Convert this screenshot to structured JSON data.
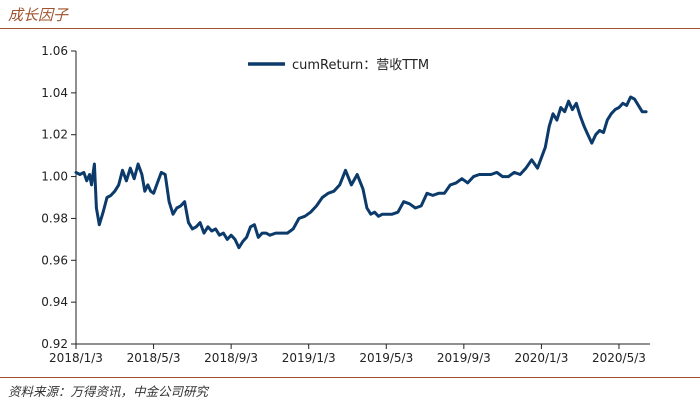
{
  "header": {
    "title": "成长因子"
  },
  "footer": {
    "source": "资料来源：万得资讯，中金公司研究"
  },
  "colors": {
    "series": "#0b3a6b",
    "rule": "#a0522d",
    "axis": "#222222"
  },
  "chart_data": {
    "type": "line",
    "title": "",
    "xlabel": "",
    "ylabel": "",
    "ylim": [
      0.92,
      1.06
    ],
    "yticks": [
      0.92,
      0.94,
      0.96,
      0.98,
      1.0,
      1.02,
      1.04,
      1.06
    ],
    "ytick_labels": [
      "0.92",
      "0.94",
      "0.96",
      "0.98",
      "1.00",
      "1.02",
      "1.04",
      "1.06"
    ],
    "xlim": [
      0,
      29.6
    ],
    "xticks": [
      0,
      4,
      8,
      12,
      16,
      20,
      24,
      28
    ],
    "xtick_labels": [
      "2018/1/3",
      "2018/5/3",
      "2018/9/3",
      "2019/1/3",
      "2019/5/3",
      "2019/9/3",
      "2020/1/3",
      "2020/5/3"
    ],
    "legend": {
      "position": "top-center"
    },
    "series": [
      {
        "name": "cumReturn：营收TTM",
        "x": [
          0,
          0.2,
          0.4,
          0.55,
          0.7,
          0.8,
          0.95,
          1.05,
          1.2,
          1.4,
          1.6,
          1.8,
          2.0,
          2.2,
          2.4,
          2.6,
          2.8,
          3.0,
          3.2,
          3.4,
          3.55,
          3.7,
          3.85,
          4.0,
          4.2,
          4.4,
          4.6,
          4.8,
          5.0,
          5.2,
          5.4,
          5.6,
          5.8,
          6.0,
          6.2,
          6.4,
          6.6,
          6.8,
          7.0,
          7.2,
          7.4,
          7.6,
          7.8,
          8.0,
          8.2,
          8.4,
          8.6,
          8.8,
          9.0,
          9.2,
          9.4,
          9.6,
          9.8,
          10.0,
          10.3,
          10.6,
          10.9,
          11.2,
          11.5,
          11.8,
          12.1,
          12.4,
          12.7,
          13.0,
          13.3,
          13.6,
          13.9,
          14.2,
          14.5,
          14.8,
          15.0,
          15.2,
          15.4,
          15.6,
          15.8,
          16.0,
          16.3,
          16.6,
          16.9,
          17.2,
          17.5,
          17.8,
          18.1,
          18.4,
          18.7,
          19.0,
          19.3,
          19.6,
          19.9,
          20.2,
          20.5,
          20.8,
          21.1,
          21.4,
          21.7,
          22.0,
          22.3,
          22.6,
          22.9,
          23.2,
          23.5,
          23.8,
          24.0,
          24.2,
          24.4,
          24.6,
          24.8,
          25.0,
          25.2,
          25.4,
          25.6,
          25.8,
          26.0,
          26.2,
          26.4,
          26.6,
          26.8,
          27.0,
          27.2,
          27.4,
          27.6,
          27.8,
          28.0,
          28.2,
          28.4,
          28.6,
          28.8,
          29.0,
          29.2,
          29.4
        ],
        "values": [
          1.002,
          1.001,
          1.002,
          0.998,
          1.001,
          0.996,
          1.006,
          0.985,
          0.977,
          0.983,
          0.99,
          0.991,
          0.993,
          0.996,
          1.003,
          0.998,
          1.004,
          0.999,
          1.006,
          1.001,
          0.993,
          0.996,
          0.993,
          0.992,
          0.997,
          1.002,
          1.001,
          0.988,
          0.982,
          0.985,
          0.986,
          0.988,
          0.978,
          0.975,
          0.976,
          0.978,
          0.973,
          0.976,
          0.974,
          0.975,
          0.972,
          0.973,
          0.97,
          0.972,
          0.97,
          0.966,
          0.969,
          0.971,
          0.976,
          0.977,
          0.971,
          0.973,
          0.973,
          0.972,
          0.973,
          0.973,
          0.973,
          0.975,
          0.98,
          0.981,
          0.983,
          0.986,
          0.99,
          0.992,
          0.993,
          0.996,
          1.003,
          0.996,
          1.001,
          0.994,
          0.985,
          0.982,
          0.983,
          0.981,
          0.982,
          0.982,
          0.982,
          0.983,
          0.988,
          0.987,
          0.985,
          0.986,
          0.992,
          0.991,
          0.992,
          0.992,
          0.996,
          0.997,
          0.999,
          0.997,
          1.0,
          1.001,
          1.001,
          1.001,
          1.002,
          1.0,
          1.0,
          1.002,
          1.001,
          1.004,
          1.008,
          1.004,
          1.009,
          1.014,
          1.024,
          1.03,
          1.027,
          1.033,
          1.031,
          1.036,
          1.032,
          1.035,
          1.029,
          1.024,
          1.02,
          1.016,
          1.02,
          1.022,
          1.021,
          1.027,
          1.03,
          1.032,
          1.033,
          1.035,
          1.034,
          1.038,
          1.037,
          1.034,
          1.031,
          1.031
        ]
      }
    ]
  }
}
